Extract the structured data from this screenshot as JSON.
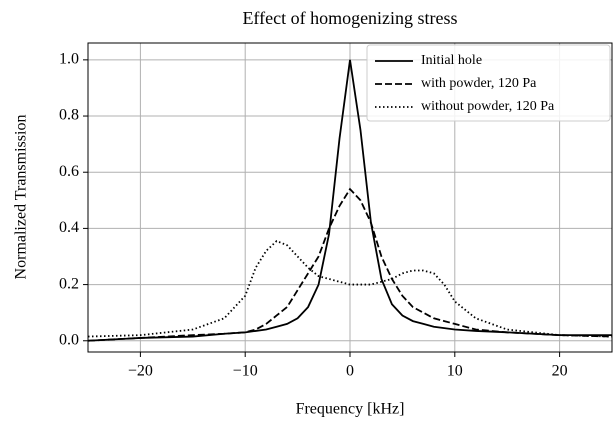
{
  "chart_data": {
    "type": "line",
    "title": "Effect of homogenizing stress",
    "xlabel": "Frequency [kHz]",
    "ylabel": "Normalized Transmission",
    "x": [
      -25,
      -20,
      -15,
      -12,
      -10,
      -9,
      -8,
      -7,
      -6,
      -5,
      -4,
      -3,
      -2,
      -1,
      0,
      1,
      2,
      3,
      4,
      5,
      6,
      7,
      8,
      9,
      10,
      12,
      15,
      20,
      25
    ],
    "series": [
      {
        "name": "Initial hole",
        "color": "#000000",
        "linestyle": "solid",
        "values": [
          0.0,
          0.01,
          0.015,
          0.025,
          0.03,
          0.035,
          0.04,
          0.05,
          0.06,
          0.08,
          0.12,
          0.2,
          0.38,
          0.72,
          1.0,
          0.75,
          0.42,
          0.22,
          0.13,
          0.09,
          0.07,
          0.06,
          0.05,
          0.045,
          0.04,
          0.035,
          0.03,
          0.02,
          0.02
        ]
      },
      {
        "name": "with powder, 120 Pa",
        "color": "#000000",
        "linestyle": "dashed",
        "values": [
          0.0,
          0.01,
          0.02,
          0.025,
          0.03,
          0.04,
          0.06,
          0.09,
          0.12,
          0.18,
          0.24,
          0.3,
          0.4,
          0.48,
          0.54,
          0.5,
          0.42,
          0.3,
          0.22,
          0.16,
          0.12,
          0.1,
          0.08,
          0.07,
          0.06,
          0.04,
          0.03,
          0.02,
          0.015
        ]
      },
      {
        "name": "without powder, 120 Pa",
        "color": "#000000",
        "linestyle": "dotted",
        "values": [
          0.015,
          0.02,
          0.04,
          0.08,
          0.16,
          0.26,
          0.32,
          0.355,
          0.34,
          0.3,
          0.26,
          0.23,
          0.22,
          0.21,
          0.2,
          0.2,
          0.2,
          0.21,
          0.22,
          0.24,
          0.25,
          0.25,
          0.24,
          0.2,
          0.14,
          0.08,
          0.04,
          0.02,
          0.015
        ]
      }
    ],
    "xlim": [
      -25,
      25
    ],
    "xticks": [
      {
        "value": -20,
        "label": "−20"
      },
      {
        "value": -10,
        "label": "−10"
      },
      0,
      10,
      20
    ],
    "ylim": [
      -0.04,
      1.06
    ],
    "yticks": [
      {
        "value": 0,
        "label": "0.0"
      },
      0.2,
      0.4,
      0.6,
      0.8,
      {
        "value": 1,
        "label": "1.0"
      }
    ],
    "grid": true,
    "legend": "upper right"
  }
}
